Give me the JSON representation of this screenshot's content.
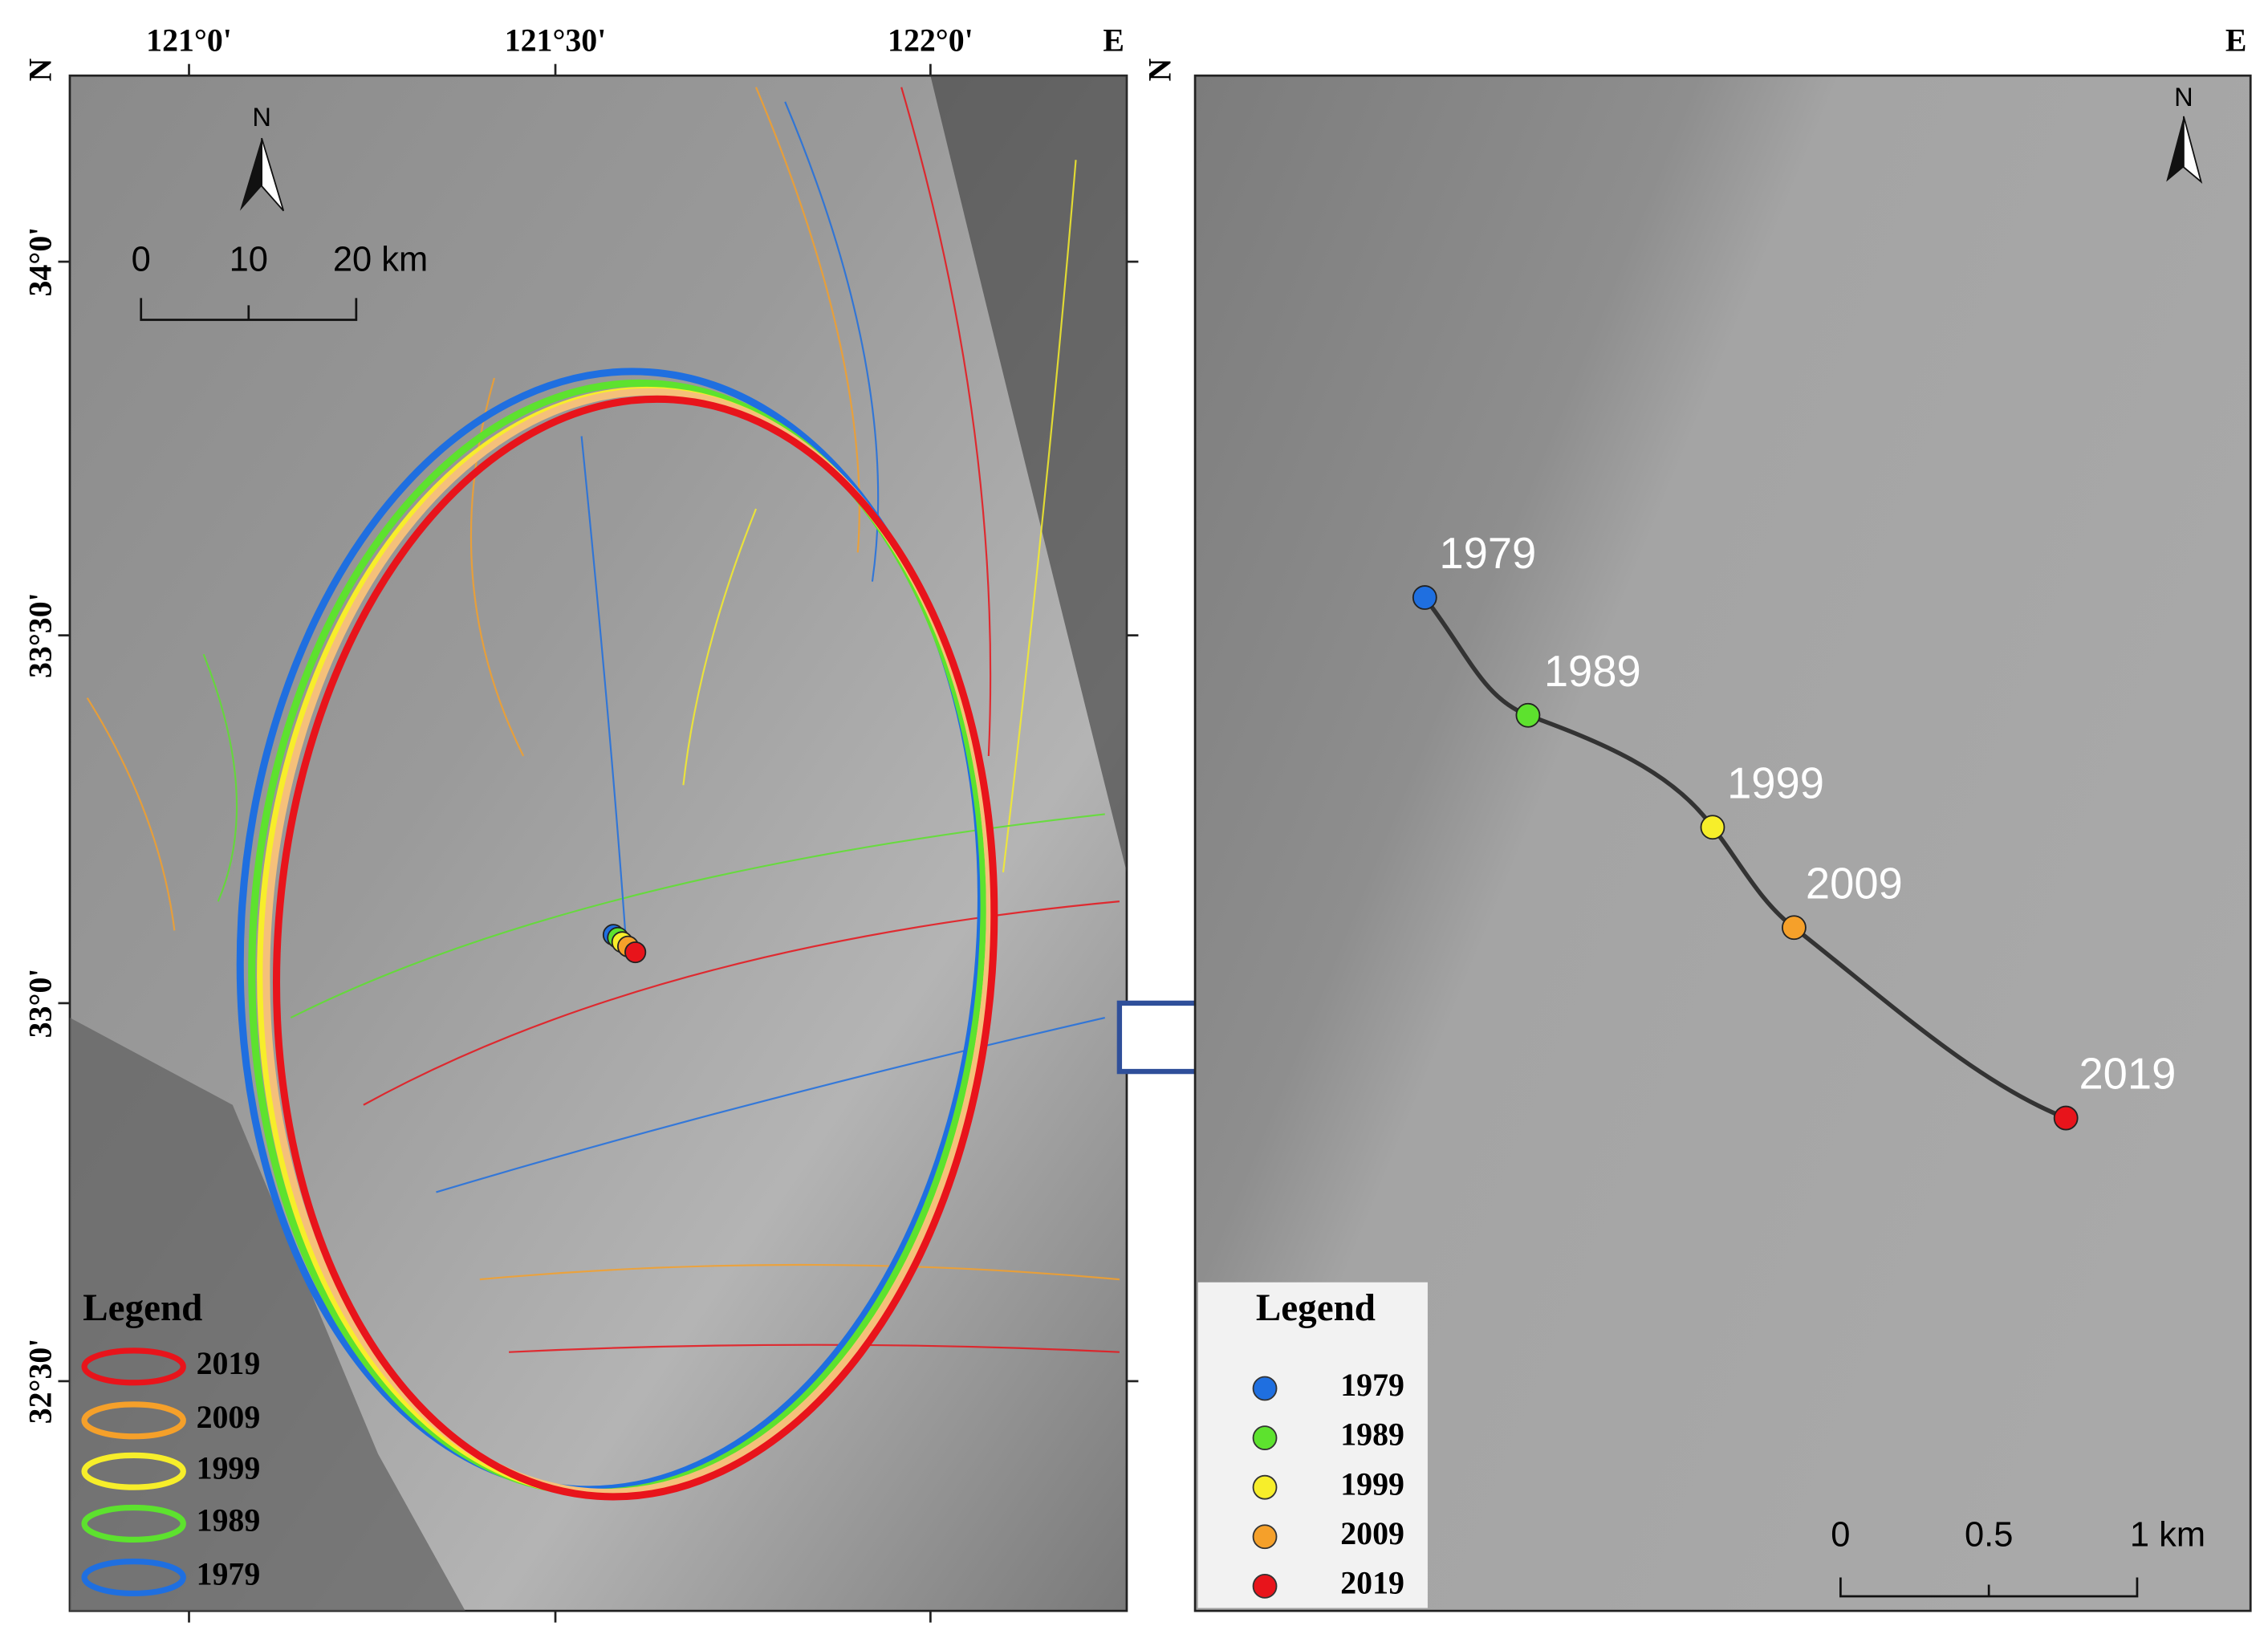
{
  "left_map": {
    "lon_labels": [
      "121°0'",
      "121°30'",
      "122°0'"
    ],
    "east_label": "E",
    "north_label": "N",
    "lat_labels": [
      "34°0'",
      "33°30'",
      "33°0'",
      "32°30'"
    ],
    "north_arrow": "N",
    "scale_labels": [
      "0",
      "10",
      "20 km"
    ],
    "legend": {
      "title": "Legend",
      "items": [
        {
          "label": "2019",
          "color": "#e8141b"
        },
        {
          "label": "2009",
          "color": "#f5a02a"
        },
        {
          "label": "1999",
          "color": "#f7ee2a"
        },
        {
          "label": "1989",
          "color": "#5de22e"
        },
        {
          "label": "1979",
          "color": "#1f6fe0"
        }
      ]
    }
  },
  "right_map": {
    "east_label": "E",
    "north_label": "N",
    "north_arrow": "N",
    "points": [
      {
        "label": "1979",
        "color": "#1f6fe0"
      },
      {
        "label": "1989",
        "color": "#5de22e"
      },
      {
        "label": "1999",
        "color": "#f7ee2a"
      },
      {
        "label": "2009",
        "color": "#f5a02a"
      },
      {
        "label": "2019",
        "color": "#e8141b"
      }
    ],
    "scale_labels": [
      "0",
      "0.5",
      "1 km"
    ],
    "legend": {
      "title": "Legend"
    }
  }
}
